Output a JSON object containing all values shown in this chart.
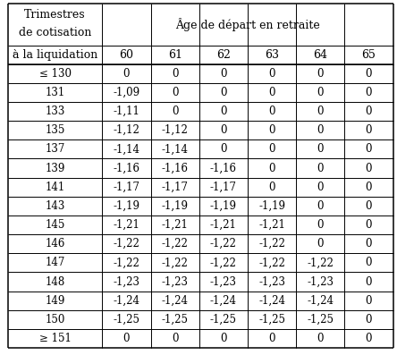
{
  "col_header_top": "Âge de départ en retraite",
  "col_header_ages": [
    "60",
    "61",
    "62",
    "63",
    "64",
    "65"
  ],
  "row_header_label": [
    "Trimestres",
    "de cotisation",
    "à la liquidation"
  ],
  "rows": [
    {
      "≤ 130": [
        "0",
        "0",
        "0",
        "0",
        "0",
        "0"
      ]
    },
    {
      "131": [
        "-1,09",
        "0",
        "0",
        "0",
        "0",
        "0"
      ]
    },
    {
      "133": [
        "-1,11",
        "0",
        "0",
        "0",
        "0",
        "0"
      ]
    },
    {
      "135": [
        "-1,12",
        "-1,12",
        "0",
        "0",
        "0",
        "0"
      ]
    },
    {
      "137": [
        "-1,14",
        "-1,14",
        "0",
        "0",
        "0",
        "0"
      ]
    },
    {
      "139": [
        "-1,16",
        "-1,16",
        "-1,16",
        "0",
        "0",
        "0"
      ]
    },
    {
      "141": [
        "-1,17",
        "-1,17",
        "-1,17",
        "0",
        "0",
        "0"
      ]
    },
    {
      "143": [
        "-1,19",
        "-1,19",
        "-1,19",
        "-1,19",
        "0",
        "0"
      ]
    },
    {
      "145": [
        "-1,21",
        "-1,21",
        "-1,21",
        "-1,21",
        "0",
        "0"
      ]
    },
    {
      "146": [
        "-1,22",
        "-1,22",
        "-1,22",
        "-1,22",
        "0",
        "0"
      ]
    },
    {
      "147": [
        "-1,22",
        "-1,22",
        "-1,22",
        "-1,22",
        "-1,22",
        "0"
      ]
    },
    {
      "148": [
        "-1,23",
        "-1,23",
        "-1,23",
        "-1,23",
        "-1,23",
        "0"
      ]
    },
    {
      "149": [
        "-1,24",
        "-1,24",
        "-1,24",
        "-1,24",
        "-1,24",
        "0"
      ]
    },
    {
      "150": [
        "-1,25",
        "-1,25",
        "-1,25",
        "-1,25",
        "-1,25",
        "0"
      ]
    },
    {
      "≥ 151": [
        "0",
        "0",
        "0",
        "0",
        "0",
        "0"
      ]
    }
  ],
  "bg_color": "#ffffff",
  "text_color": "#000000",
  "font_size": 8.5,
  "header_font_size": 9.0,
  "fig_width": 4.44,
  "fig_height": 3.97,
  "dpi": 100
}
